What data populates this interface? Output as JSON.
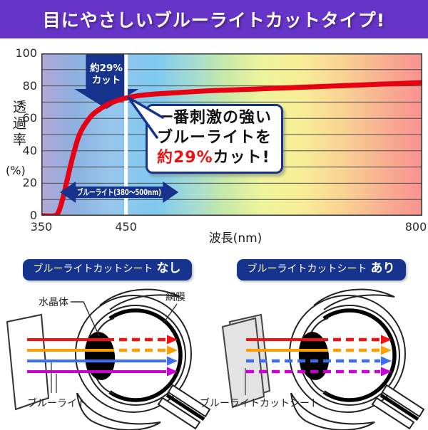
{
  "banner": {
    "title": "目にやさしいブルーライトカットタイプ!"
  },
  "chart": {
    "y_axis_label": "透過率",
    "y_axis_unit": "(%)",
    "x_axis_label": "波長(nm)",
    "y_ticks": [
      "100",
      "80",
      "60",
      "40",
      "20",
      "0"
    ],
    "cut_arrow": {
      "line1": "約29%",
      "line2": "カット"
    },
    "band_label": "ブルーライト(380〜500nm)",
    "bubble": {
      "line1": "一番刺激の強い",
      "line2": "ブルーライトを",
      "line3_highlight": "約29%",
      "line3_rest": "カット!"
    }
  },
  "chart_data": {
    "type": "line",
    "xlabel": "波長(nm)",
    "ylabel": "透過率(%)",
    "xlim": [
      350,
      800
    ],
    "ylim": [
      0,
      100
    ],
    "x_ticks": [
      350,
      450,
      800
    ],
    "y_tick_values": [
      0,
      20,
      40,
      60,
      80,
      100
    ],
    "grid_step": 10,
    "background": "visible-light-spectrum-gradient",
    "series": [
      {
        "name": "透過率(%)",
        "x": [
          350,
          365,
          370,
          375,
          380,
          385,
          390,
          395,
          400,
          410,
          420,
          430,
          440,
          450,
          465,
          480,
          500,
          550,
          600,
          650,
          700,
          750,
          800
        ],
        "y": [
          0,
          0,
          2,
          10,
          21,
          32,
          42,
          50,
          55,
          62,
          66,
          69,
          71,
          72.5,
          74,
          74.8,
          75.5,
          77,
          78,
          79,
          80,
          81,
          82
        ]
      }
    ],
    "annotations": {
      "cut_arrow_x": 427,
      "cut_arrow_label": "約29%カット",
      "vline_x": 450,
      "band_range": [
        372,
        512
      ],
      "band_y": 14.5,
      "band_label": "ブルーライト(380〜500nm)",
      "bubble_text": "一番刺激の強いブルーライトを約29%カット!"
    }
  },
  "diagrams": {
    "left": {
      "badge_main": "ブルーライトカットシート",
      "badge_emph": "なし",
      "labels": {
        "lens": "水晶体",
        "retina": "網膜",
        "beam": "ブルーライト"
      },
      "beams": [
        {
          "color": "#f51111",
          "dashed_from": "lens"
        },
        {
          "color": "#ff9c00",
          "dashed_from": "lens"
        },
        {
          "color": "#3b6ef5",
          "dashed_from": "none"
        },
        {
          "color": "#c800d2",
          "dashed_from": "none"
        }
      ]
    },
    "right": {
      "badge_main": "ブルーライトカットシート",
      "badge_emph": "あり",
      "labels": {
        "sheet": "ブルーライトカットシート"
      },
      "beams": [
        {
          "color": "#f51111",
          "dashed_from": "lens"
        },
        {
          "color": "#ff9c00",
          "dashed_from": "lens"
        },
        {
          "color": "#3b6ef5",
          "dashed_from": "sheet"
        },
        {
          "color": "#c800d2",
          "dashed_from": "sheet"
        }
      ]
    }
  },
  "colors": {
    "banner_bg": "#6734c8",
    "navy": "#16338e",
    "curve_red": "#e60012",
    "highlight_red": "#ee1111",
    "white_line": "#ffffff",
    "sheet_gray": "#e3e3e3"
  }
}
